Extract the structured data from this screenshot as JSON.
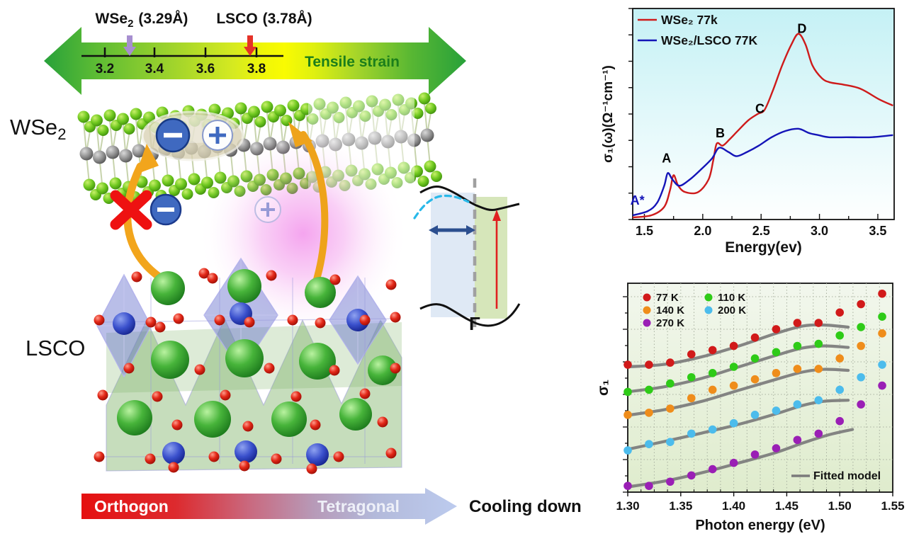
{
  "figure": {
    "left_diagram": {
      "strain_scale": {
        "wse2_marker": {
          "main": "WSe",
          "sub": "2",
          "value": "(3.29Å)"
        },
        "lsco_marker": {
          "main": "LSCO",
          "value": "(3.78Å)"
        },
        "ticks": [
          "3.2",
          "3.4",
          "3.6",
          "3.8"
        ],
        "arrow_label": "Tensile strain",
        "arrow_label_color": "#1b7e1b"
      },
      "wse2_layer_label": {
        "main": "WSe",
        "sub": "2"
      },
      "lsco_label": "LSCO",
      "band_diagram_gamma": "Γ",
      "phase_arrow": {
        "left_label": "Orthogon",
        "right_label": "Tetragonal",
        "caption": "Cooling down"
      }
    }
  },
  "chart_data": [
    {
      "type": "line",
      "title": "",
      "xlabel": "Energy(ev)",
      "ylabel": "σ₁(ω)(Ω⁻¹cm⁻¹)",
      "xlim": [
        1.4,
        3.64
      ],
      "xticks": [
        1.5,
        2.0,
        2.5,
        3.0,
        3.5
      ],
      "xtick_labels": [
        "1.5",
        "2.0",
        "2.5",
        "3.0",
        "3.5"
      ],
      "grid": false,
      "legend_position": "top-left",
      "background": {
        "top": "#c5f1f5",
        "bottom": "#feffff"
      },
      "series": [
        {
          "name": "WSe₂ 77k",
          "color": "#ce1b1b",
          "points": [
            [
              1.4,
              0.01
            ],
            [
              1.56,
              0.02
            ],
            [
              1.67,
              0.06
            ],
            [
              1.72,
              0.14
            ],
            [
              1.75,
              0.21
            ],
            [
              1.79,
              0.16
            ],
            [
              1.85,
              0.13
            ],
            [
              1.96,
              0.13
            ],
            [
              2.05,
              0.19
            ],
            [
              2.09,
              0.28
            ],
            [
              2.12,
              0.36
            ],
            [
              2.17,
              0.35
            ],
            [
              2.23,
              0.38
            ],
            [
              2.3,
              0.42
            ],
            [
              2.39,
              0.47
            ],
            [
              2.47,
              0.5
            ],
            [
              2.53,
              0.52
            ],
            [
              2.6,
              0.61
            ],
            [
              2.68,
              0.73
            ],
            [
              2.76,
              0.83
            ],
            [
              2.82,
              0.88
            ],
            [
              2.88,
              0.83
            ],
            [
              2.94,
              0.73
            ],
            [
              3.02,
              0.67
            ],
            [
              3.09,
              0.65
            ],
            [
              3.2,
              0.64
            ],
            [
              3.35,
              0.62
            ],
            [
              3.51,
              0.57
            ],
            [
              3.63,
              0.54
            ]
          ]
        },
        {
          "name": "WSe₂/LSCO 77K",
          "color": "#1414b8",
          "points": [
            [
              1.4,
              0.02
            ],
            [
              1.53,
              0.04
            ],
            [
              1.61,
              0.08
            ],
            [
              1.67,
              0.16
            ],
            [
              1.7,
              0.22
            ],
            [
              1.74,
              0.19
            ],
            [
              1.8,
              0.16
            ],
            [
              1.89,
              0.19
            ],
            [
              1.99,
              0.24
            ],
            [
              2.08,
              0.29
            ],
            [
              2.14,
              0.34
            ],
            [
              2.22,
              0.32
            ],
            [
              2.29,
              0.3
            ],
            [
              2.38,
              0.32
            ],
            [
              2.48,
              0.35
            ],
            [
              2.59,
              0.39
            ],
            [
              2.71,
              0.42
            ],
            [
              2.82,
              0.43
            ],
            [
              2.91,
              0.41
            ],
            [
              2.99,
              0.4
            ],
            [
              3.08,
              0.39
            ],
            [
              3.23,
              0.39
            ],
            [
              3.44,
              0.39
            ],
            [
              3.63,
              0.4
            ]
          ]
        }
      ],
      "annotations": [
        {
          "text": "A*",
          "x": 1.44,
          "y": 0.07,
          "color": "#1414b8"
        },
        {
          "text": "A",
          "x": 1.69,
          "y": 0.27,
          "color": "#000000"
        },
        {
          "text": "B",
          "x": 2.15,
          "y": 0.39,
          "color": "#000000"
        },
        {
          "text": "C",
          "x": 2.49,
          "y": 0.505,
          "color": "#000000"
        },
        {
          "text": "D",
          "x": 2.85,
          "y": 0.885,
          "color": "#000000"
        }
      ]
    },
    {
      "type": "scatter",
      "title": "",
      "xlabel": "Photon energy (eV)",
      "ylabel": "σ₁",
      "xlim": [
        1.3,
        1.55
      ],
      "xtick_labels": [
        "1.30",
        "1.35",
        "1.40",
        "1.45",
        "1.50",
        "1.55"
      ],
      "grid": true,
      "background": {
        "top": "#f2f7ed",
        "bottom": "#dfeccd"
      },
      "fit_label": "Fitted model",
      "fit_color": "#7b7b7b",
      "x_values": [
        1.3,
        1.32,
        1.34,
        1.36,
        1.38,
        1.4,
        1.42,
        1.44,
        1.46,
        1.48,
        1.5,
        1.52,
        1.54
      ],
      "series": [
        {
          "name": "77 K",
          "color": "#d11a1a",
          "y": [
            0.61,
            0.61,
            0.62,
            0.66,
            0.68,
            0.7,
            0.74,
            0.78,
            0.81,
            0.81,
            0.86,
            0.9,
            0.95
          ],
          "fit": [
            [
              1.3,
              0.6
            ],
            [
              1.335,
              0.612
            ],
            [
              1.37,
              0.648
            ],
            [
              1.405,
              0.7
            ],
            [
              1.44,
              0.76
            ],
            [
              1.465,
              0.795
            ],
            [
              1.485,
              0.8
            ],
            [
              1.508,
              0.79
            ]
          ]
        },
        {
          "name": "140 K",
          "color": "#ef8d1b",
          "y": [
            0.37,
            0.38,
            0.4,
            0.45,
            0.49,
            0.51,
            0.54,
            0.57,
            0.59,
            0.59,
            0.64,
            0.7,
            0.76
          ],
          "fit": [
            [
              1.3,
              0.368
            ],
            [
              1.335,
              0.395
            ],
            [
              1.37,
              0.435
            ],
            [
              1.405,
              0.488
            ],
            [
              1.44,
              0.54
            ],
            [
              1.465,
              0.575
            ],
            [
              1.485,
              0.588
            ],
            [
              1.508,
              0.583
            ]
          ]
        },
        {
          "name": "270 K",
          "color": "#9a1fb5",
          "y": [
            0.03,
            0.03,
            0.05,
            0.08,
            0.11,
            0.14,
            0.18,
            0.21,
            0.25,
            0.28,
            0.34,
            0.42,
            0.51
          ],
          "fit": [
            [
              1.3,
              0.025
            ],
            [
              1.335,
              0.053
            ],
            [
              1.37,
              0.093
            ],
            [
              1.405,
              0.14
            ],
            [
              1.44,
              0.19
            ],
            [
              1.465,
              0.235
            ],
            [
              1.49,
              0.275
            ],
            [
              1.512,
              0.3
            ]
          ]
        },
        {
          "name": "110 K",
          "color": "#2ecb17",
          "y": [
            0.48,
            0.49,
            0.52,
            0.55,
            0.57,
            0.6,
            0.64,
            0.67,
            0.7,
            0.71,
            0.75,
            0.79,
            0.84
          ],
          "fit": [
            [
              1.3,
              0.48
            ],
            [
              1.335,
              0.505
            ],
            [
              1.37,
              0.545
            ],
            [
              1.405,
              0.6
            ],
            [
              1.44,
              0.655
            ],
            [
              1.465,
              0.69
            ],
            [
              1.485,
              0.7
            ],
            [
              1.508,
              0.693
            ]
          ]
        },
        {
          "name": "200 K",
          "color": "#4cbcec",
          "y": [
            0.2,
            0.23,
            0.24,
            0.28,
            0.3,
            0.33,
            0.37,
            0.39,
            0.42,
            0.44,
            0.49,
            0.55,
            0.61
          ],
          "fit": [
            [
              1.3,
              0.205
            ],
            [
              1.335,
              0.243
            ],
            [
              1.37,
              0.283
            ],
            [
              1.405,
              0.325
            ],
            [
              1.44,
              0.375
            ],
            [
              1.465,
              0.415
            ],
            [
              1.485,
              0.435
            ],
            [
              1.508,
              0.44
            ]
          ]
        }
      ]
    }
  ]
}
